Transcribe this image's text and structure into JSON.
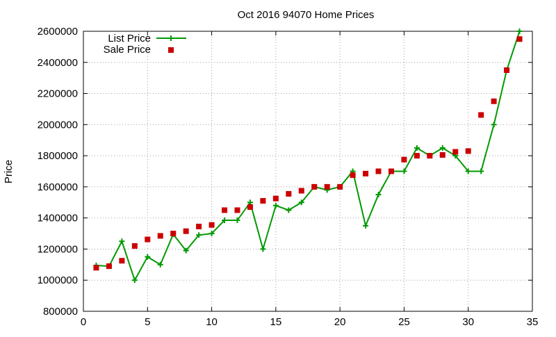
{
  "chart_data": {
    "type": "line",
    "title": "Oct 2016 94070 Home Prices",
    "xlabel": "",
    "ylabel": "Price",
    "xlim": [
      0,
      35
    ],
    "ylim": [
      800000,
      2600000
    ],
    "x_ticks": [
      0,
      5,
      10,
      15,
      20,
      25,
      30,
      35
    ],
    "y_ticks": [
      800000,
      1000000,
      1200000,
      1400000,
      1600000,
      1800000,
      2000000,
      2200000,
      2400000,
      2600000
    ],
    "x_tick_labels": [
      "0",
      "5",
      "10",
      "15",
      "20",
      "25",
      "30",
      "35"
    ],
    "y_tick_labels": [
      "800000",
      "1000000",
      "1200000",
      "1400000",
      "1600000",
      "1800000",
      "2000000",
      "2200000",
      "2400000",
      "2600000"
    ],
    "grid": true,
    "legend_position": "top-left",
    "series": [
      {
        "name": "List Price",
        "style": "line-with-plus-markers",
        "color": "#009900",
        "x": [
          1,
          2,
          3,
          4,
          5,
          6,
          7,
          8,
          9,
          10,
          11,
          12,
          13,
          14,
          15,
          16,
          17,
          18,
          19,
          20,
          21,
          22,
          23,
          24,
          25,
          26,
          27,
          28,
          29,
          30,
          31,
          32,
          33,
          34
        ],
        "values": [
          1095000,
          1090000,
          1250000,
          1000000,
          1150000,
          1100000,
          1295000,
          1190000,
          1290000,
          1300000,
          1385000,
          1385000,
          1500000,
          1200000,
          1480000,
          1450000,
          1500000,
          1600000,
          1580000,
          1600000,
          1700000,
          1350000,
          1550000,
          1700000,
          1700000,
          1850000,
          1800000,
          1850000,
          1800000,
          1700000,
          1700000,
          2000000,
          2350000,
          2600000
        ]
      },
      {
        "name": "Sale Price",
        "style": "square-markers",
        "color": "#cc0000",
        "x": [
          1,
          2,
          3,
          4,
          5,
          6,
          7,
          8,
          9,
          10,
          11,
          12,
          13,
          14,
          15,
          16,
          17,
          18,
          19,
          20,
          21,
          22,
          23,
          24,
          25,
          26,
          27,
          28,
          29,
          30,
          31,
          32,
          33,
          34
        ],
        "values": [
          1080000,
          1090000,
          1125000,
          1220000,
          1262000,
          1285000,
          1300000,
          1315000,
          1345000,
          1355000,
          1450000,
          1450000,
          1470000,
          1510000,
          1525000,
          1555000,
          1575000,
          1600000,
          1600000,
          1600000,
          1675000,
          1685000,
          1700000,
          1700000,
          1775000,
          1800000,
          1800000,
          1805000,
          1825000,
          1830000,
          2062000,
          2150000,
          2350000,
          2550000
        ]
      }
    ]
  }
}
